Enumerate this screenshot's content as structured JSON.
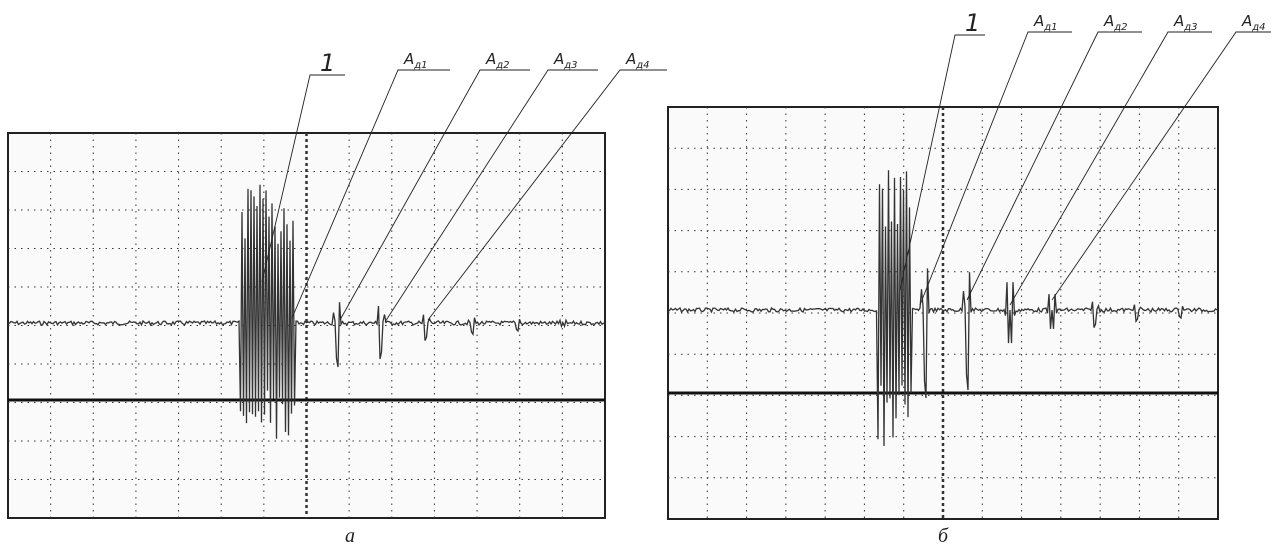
{
  "panels": [
    {
      "caption": "а",
      "callouts": [
        {
          "text": "1"
        },
        {
          "main": "A",
          "sub": "д1"
        },
        {
          "main": "A",
          "sub": "д2"
        },
        {
          "main": "A",
          "sub": "д3"
        },
        {
          "main": "A",
          "sub": "д4"
        }
      ]
    },
    {
      "caption": "б",
      "callouts": [
        {
          "text": "1"
        },
        {
          "main": "A",
          "sub": "д1"
        },
        {
          "main": "A",
          "sub": "д2"
        },
        {
          "main": "A",
          "sub": "д3"
        },
        {
          "main": "A",
          "sub": "д4"
        }
      ]
    }
  ]
}
